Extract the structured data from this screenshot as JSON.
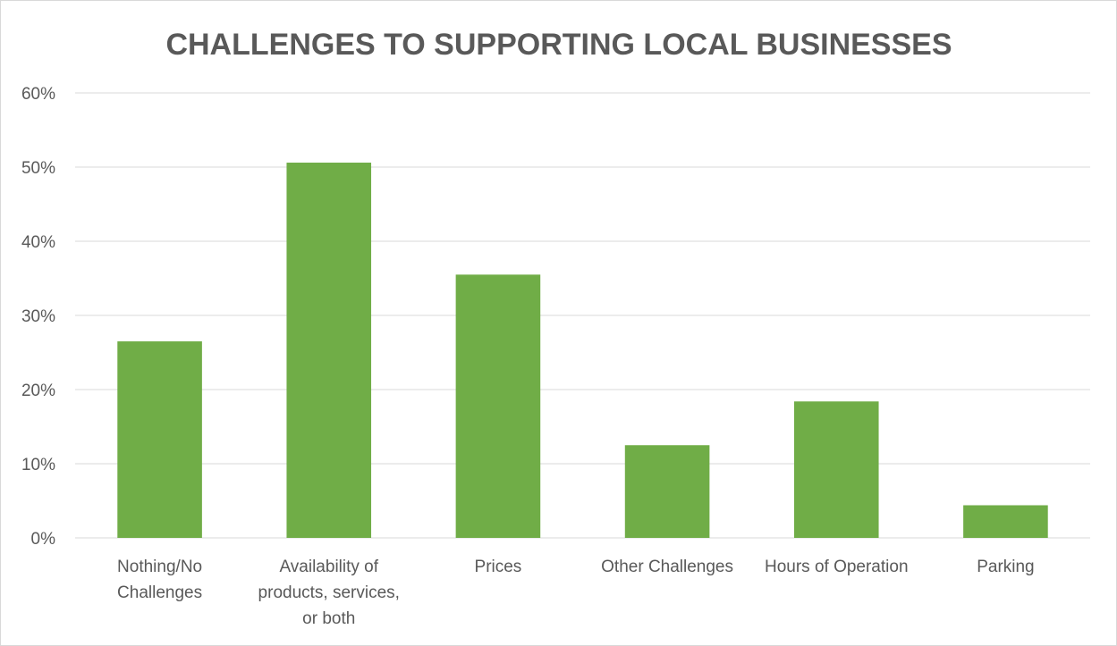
{
  "chart_data": {
    "type": "bar",
    "title": "CHALLENGES TO SUPPORTING LOCAL BUSINESSES",
    "xlabel": "",
    "ylabel": "",
    "categories": [
      [
        "Nothing/No",
        "Challenges"
      ],
      [
        "Availability of",
        "products, services,",
        "or both"
      ],
      [
        "Prices"
      ],
      [
        "Other Challenges"
      ],
      [
        "Hours of Operation"
      ],
      [
        "Parking"
      ]
    ],
    "values": [
      26.5,
      50.6,
      35.5,
      12.5,
      18.4,
      4.4
    ],
    "ylim": [
      0,
      60
    ],
    "yticks": [
      0,
      10,
      20,
      30,
      40,
      50,
      60
    ],
    "ytick_labels": [
      "0%",
      "10%",
      "20%",
      "30%",
      "40%",
      "50%",
      "60%"
    ],
    "bar_color": "#70ad47",
    "grid": true,
    "legend": "none"
  }
}
